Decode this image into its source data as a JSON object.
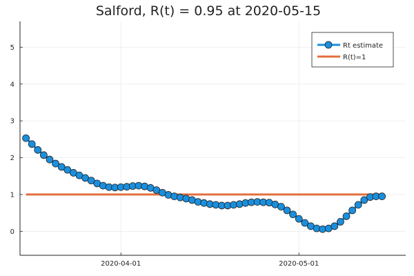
{
  "chart_data": {
    "type": "line",
    "title": "Salford, R(t) = 0.95 at 2020-05-15",
    "xlabel": "",
    "ylabel": "",
    "x_ticks": [
      "2020-04-01",
      "2020-05-01"
    ],
    "y_ticks": [
      "0",
      "1",
      "2",
      "3",
      "4",
      "5"
    ],
    "ylim": [
      -0.65,
      5.7
    ],
    "xlim": [
      "2020-03-15",
      "2020-05-19"
    ],
    "grid": true,
    "legend_position": "top-right",
    "colors": {
      "rt": "#1a8fde",
      "ref": "#e26f3b"
    },
    "series": [
      {
        "name": "Rt estimate",
        "marker": "circle",
        "x": [
          "2020-03-16",
          "2020-03-17",
          "2020-03-18",
          "2020-03-19",
          "2020-03-20",
          "2020-03-21",
          "2020-03-22",
          "2020-03-23",
          "2020-03-24",
          "2020-03-25",
          "2020-03-26",
          "2020-03-27",
          "2020-03-28",
          "2020-03-29",
          "2020-03-30",
          "2020-03-31",
          "2020-04-01",
          "2020-04-02",
          "2020-04-03",
          "2020-04-04",
          "2020-04-05",
          "2020-04-06",
          "2020-04-07",
          "2020-04-08",
          "2020-04-09",
          "2020-04-10",
          "2020-04-11",
          "2020-04-12",
          "2020-04-13",
          "2020-04-14",
          "2020-04-15",
          "2020-04-16",
          "2020-04-17",
          "2020-04-18",
          "2020-04-19",
          "2020-04-20",
          "2020-04-21",
          "2020-04-22",
          "2020-04-23",
          "2020-04-24",
          "2020-04-25",
          "2020-04-26",
          "2020-04-27",
          "2020-04-28",
          "2020-04-29",
          "2020-04-30",
          "2020-05-01",
          "2020-05-02",
          "2020-05-03",
          "2020-05-04",
          "2020-05-05",
          "2020-05-06",
          "2020-05-07",
          "2020-05-08",
          "2020-05-09",
          "2020-05-10",
          "2020-05-11",
          "2020-05-12",
          "2020-05-13",
          "2020-05-14",
          "2020-05-15"
        ],
        "y": [
          2.53,
          2.37,
          2.21,
          2.07,
          1.95,
          1.84,
          1.75,
          1.67,
          1.59,
          1.52,
          1.45,
          1.38,
          1.3,
          1.24,
          1.2,
          1.19,
          1.2,
          1.21,
          1.23,
          1.24,
          1.22,
          1.18,
          1.12,
          1.05,
          0.99,
          0.95,
          0.92,
          0.89,
          0.85,
          0.8,
          0.77,
          0.74,
          0.72,
          0.7,
          0.7,
          0.72,
          0.74,
          0.77,
          0.79,
          0.8,
          0.79,
          0.78,
          0.73,
          0.67,
          0.57,
          0.46,
          0.34,
          0.23,
          0.14,
          0.08,
          0.06,
          0.08,
          0.14,
          0.26,
          0.41,
          0.57,
          0.72,
          0.85,
          0.93,
          0.95,
          0.95
        ]
      },
      {
        "name": "R(t)=1",
        "x": [
          "2020-03-16",
          "2020-05-15"
        ],
        "y": [
          1,
          1
        ]
      }
    ]
  }
}
